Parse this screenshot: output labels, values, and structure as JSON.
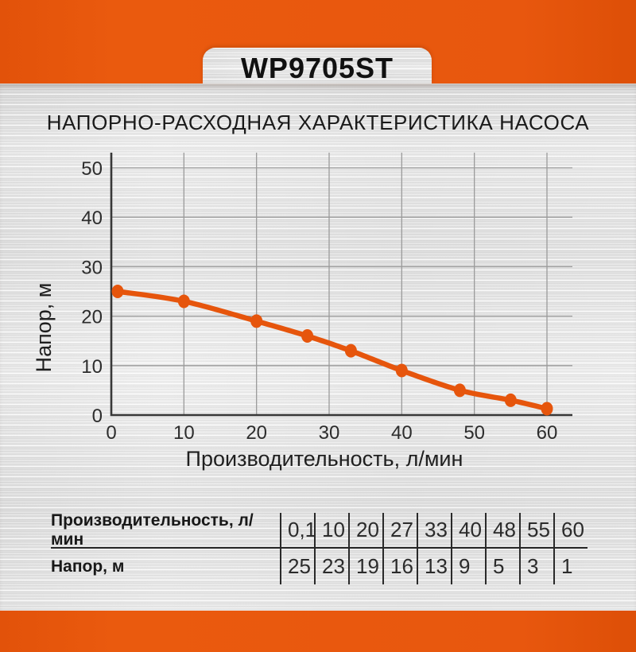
{
  "model": "WP9705ST",
  "title": "НАПОРНО-РАСХОДНАЯ ХАРАКТЕРИСТИКА НАСОСА",
  "colors": {
    "accent_orange": "#E8570E",
    "curve_orange": "#E6550C",
    "grid_gray": "#9b9b9b",
    "axis_dark": "#383838"
  },
  "chart_data": {
    "type": "line",
    "title": "",
    "xlabel": "Производительность, л/мин",
    "ylabel": "Напор, м",
    "x": [
      0.1,
      10,
      20,
      27,
      33,
      40,
      48,
      55,
      60
    ],
    "series": [
      {
        "name": "Напор, м",
        "values": [
          25,
          23,
          19,
          16,
          13,
          9,
          5,
          3,
          1
        ]
      }
    ],
    "xticks": [
      0,
      10,
      20,
      30,
      40,
      50,
      60
    ],
    "yticks": [
      0,
      10,
      20,
      30,
      40,
      50
    ],
    "xlim": [
      0,
      63.5
    ],
    "ylim": [
      0,
      53
    ],
    "grid": true,
    "legend": "none"
  },
  "table": {
    "rows": [
      {
        "label": "Производительность, л/мин",
        "values": [
          "0,1",
          "10",
          "20",
          "27",
          "33",
          "40",
          "48",
          "55",
          "60"
        ]
      },
      {
        "label": "Напор, м",
        "values": [
          "25",
          "23",
          "19",
          "16",
          "13",
          "9",
          "5",
          "3",
          "1"
        ]
      }
    ]
  }
}
